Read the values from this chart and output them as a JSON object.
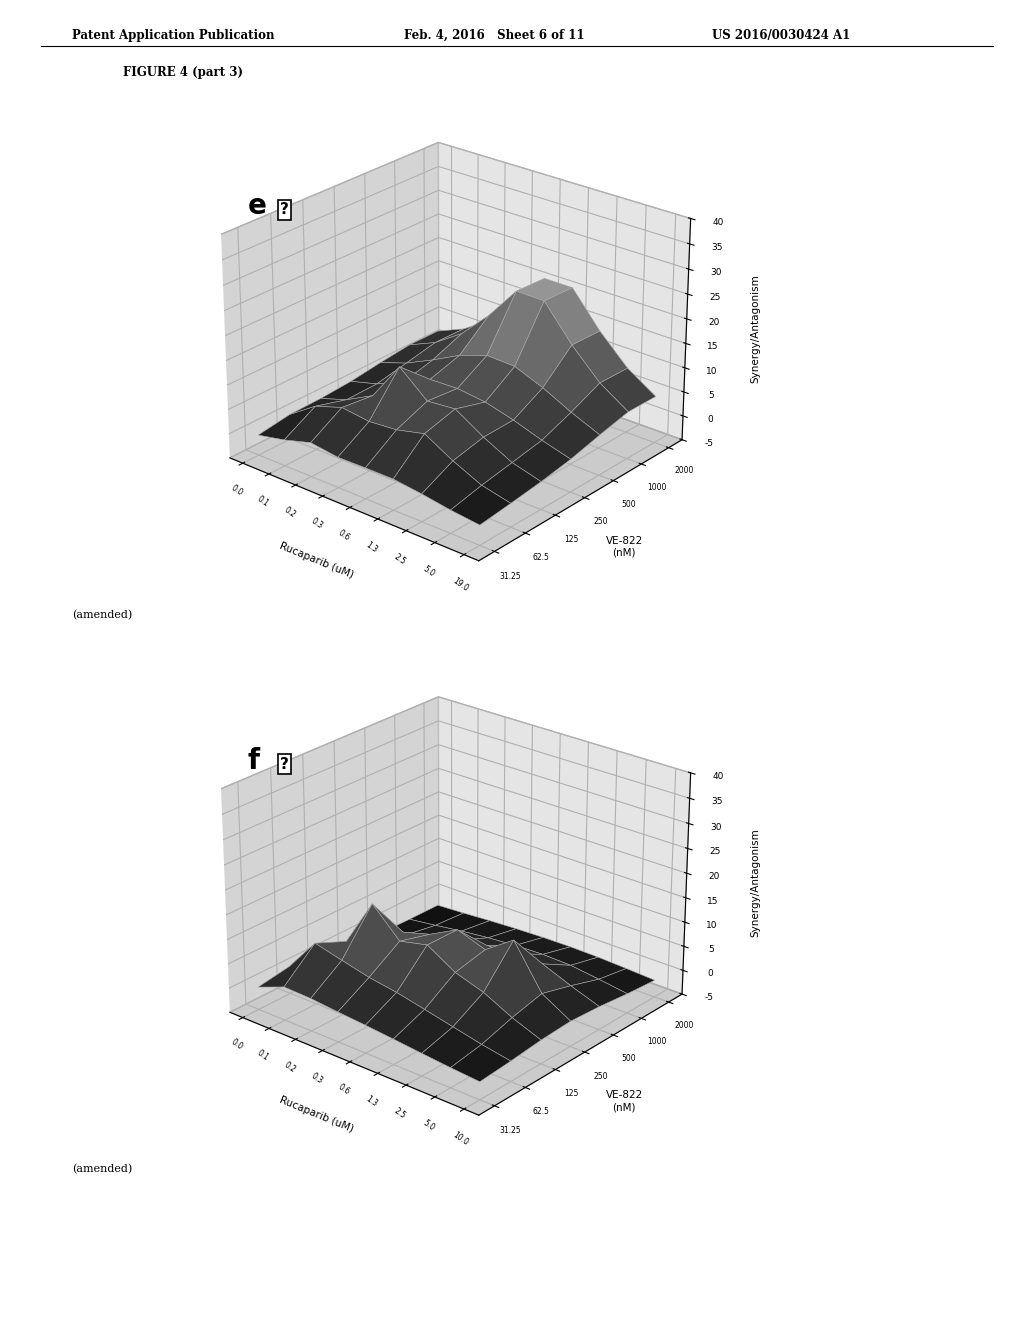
{
  "header_left": "Patent Application Publication",
  "header_mid": "Feb. 4, 2016   Sheet 6 of 11",
  "header_right": "US 2016/0030424 A1",
  "figure_label": "FIGURE 4 (part 3)",
  "plot_e_label": "e",
  "plot_f_label": "f",
  "amended_text": "(amended)",
  "z_label": "Synergy/Antagonism",
  "x_label": "Rucaparib (uM)",
  "y_label": "VE-822\n(nM)",
  "x_ticks_e": [
    "0.0",
    "0.1",
    "0.2",
    "0.3",
    "0.6",
    "1.3",
    "2.5",
    "5.0",
    "19.0"
  ],
  "x_ticks_f": [
    "0.0",
    "0.1",
    "0.2",
    "0.3",
    "0.6",
    "1.3",
    "2.5",
    "5.0",
    "10.0"
  ],
  "y_ticks": [
    "31.25",
    "62.5",
    "125",
    "250",
    "500",
    "1000",
    "2000"
  ],
  "z_ticks": [
    -5,
    0,
    5,
    10,
    15,
    20,
    25,
    30,
    35,
    40
  ],
  "zlim": [
    -5,
    40
  ],
  "elev": 25,
  "azim": -50,
  "pane_left": "#b8b8b8",
  "pane_right": "#888888",
  "pane_floor": "#808080",
  "background_color": "#ffffff"
}
